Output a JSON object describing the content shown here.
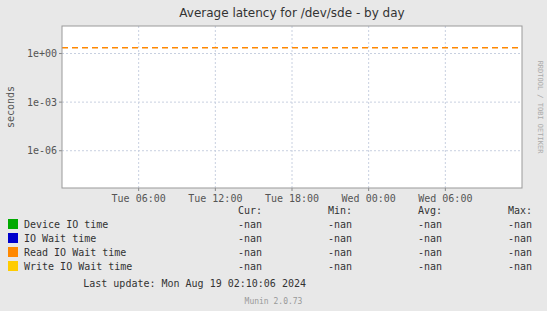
{
  "chart_data": {
    "type": "line",
    "title": "Average latency for /dev/sde - by day",
    "y_label": "seconds",
    "log": "y",
    "grid": true,
    "xlim": [
      0,
      1
    ],
    "xticks": [
      {
        "value": 0.16667,
        "label": "Tue 06:00"
      },
      {
        "value": 0.33333,
        "label": "Tue 12:00"
      },
      {
        "value": 0.5,
        "label": "Tue 18:00"
      },
      {
        "value": 0.66667,
        "label": "Wed 00:00"
      },
      {
        "value": 0.83333,
        "label": "Wed 06:00"
      }
    ],
    "ylim": [
      5e-09,
      50
    ],
    "yticks": [
      {
        "value": 1e-06,
        "label": "1e-06"
      },
      {
        "value": 0.001,
        "label": "1e-03"
      },
      {
        "value": 1,
        "label": "1e+00"
      }
    ],
    "reference_lines": [
      {
        "value": 2.3,
        "color": "#ff8800",
        "line_style": "dashed"
      }
    ],
    "legend_columns": [
      "Cur:",
      "Min:",
      "Avg:",
      "Max:"
    ],
    "series": [
      {
        "name": "Device IO time",
        "color": "#00aa00",
        "legend_values": [
          "-nan",
          "-nan",
          "-nan",
          "-nan"
        ]
      },
      {
        "name": "IO Wait time",
        "color": "#0000cc",
        "legend_values": [
          "-nan",
          "-nan",
          "-nan",
          "-nan"
        ]
      },
      {
        "name": "Read IO Wait time",
        "color": "#ff8800",
        "legend_values": [
          "-nan",
          "-nan",
          "-nan",
          "-nan"
        ]
      },
      {
        "name": "Write IO Wait time",
        "color": "#ffcc00",
        "legend_values": [
          "-nan",
          "-nan",
          "-nan",
          "-nan"
        ]
      }
    ],
    "annotations": [
      "Last update: Mon Aug 19 02:10:06 2024",
      "Munin 2.0.73",
      "RRDTOOL / TOBI OETIKER"
    ]
  }
}
